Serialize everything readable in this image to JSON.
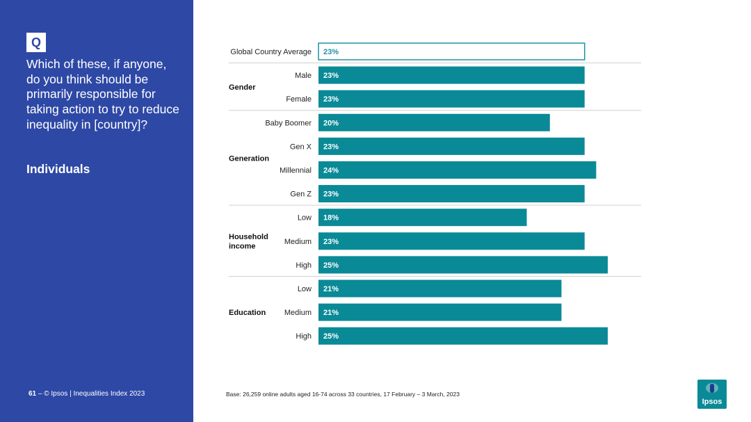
{
  "colors": {
    "panel": "#2e48a5",
    "bar": "#0a8a96",
    "highlight_border": "#1f93a1",
    "separator": "#d0d0d0",
    "logo": "#0a8a96"
  },
  "question": {
    "badge": "Q",
    "text": "Which of these, if anyone, do you think should be primarily responsible for taking action to try to reduce inequality in [country]?",
    "answer": "Individuals"
  },
  "footer": {
    "page_number": "61",
    "dash": "–",
    "copyright": "© Ipsos | Inequalities Index 2023",
    "base": "Base: 26,259 online adults aged 16-74 across 33 countries, 17 February – 3 March, 2023"
  },
  "logo": {
    "text": "Ipsos"
  },
  "chart_data": {
    "type": "bar",
    "orientation": "horizontal",
    "unit": "%",
    "xlim": [
      0,
      25
    ],
    "groups": [
      {
        "name": "",
        "rows": [
          {
            "label": "Global Country Average",
            "value": 23,
            "display": "23%",
            "highlight": true
          }
        ]
      },
      {
        "name": "Gender",
        "rows": [
          {
            "label": "Male",
            "value": 23,
            "display": "23%"
          },
          {
            "label": "Female",
            "value": 23,
            "display": "23%"
          }
        ]
      },
      {
        "name": "Generation",
        "rows": [
          {
            "label": "Baby Boomer",
            "value": 20,
            "display": "20%"
          },
          {
            "label": "Gen X",
            "value": 23,
            "display": "23%"
          },
          {
            "label": "Millennial",
            "value": 24,
            "display": "24%"
          },
          {
            "label": "Gen Z",
            "value": 23,
            "display": "23%"
          }
        ]
      },
      {
        "name": "Household income",
        "rows": [
          {
            "label": "Low",
            "value": 18,
            "display": "18%"
          },
          {
            "label": "Medium",
            "value": 23,
            "display": "23%"
          },
          {
            "label": "High",
            "value": 25,
            "display": "25%"
          }
        ]
      },
      {
        "name": "Education",
        "rows": [
          {
            "label": "Low",
            "value": 21,
            "display": "21%"
          },
          {
            "label": "Medium",
            "value": 21,
            "display": "21%"
          },
          {
            "label": "High",
            "value": 25,
            "display": "25%"
          }
        ]
      }
    ]
  }
}
